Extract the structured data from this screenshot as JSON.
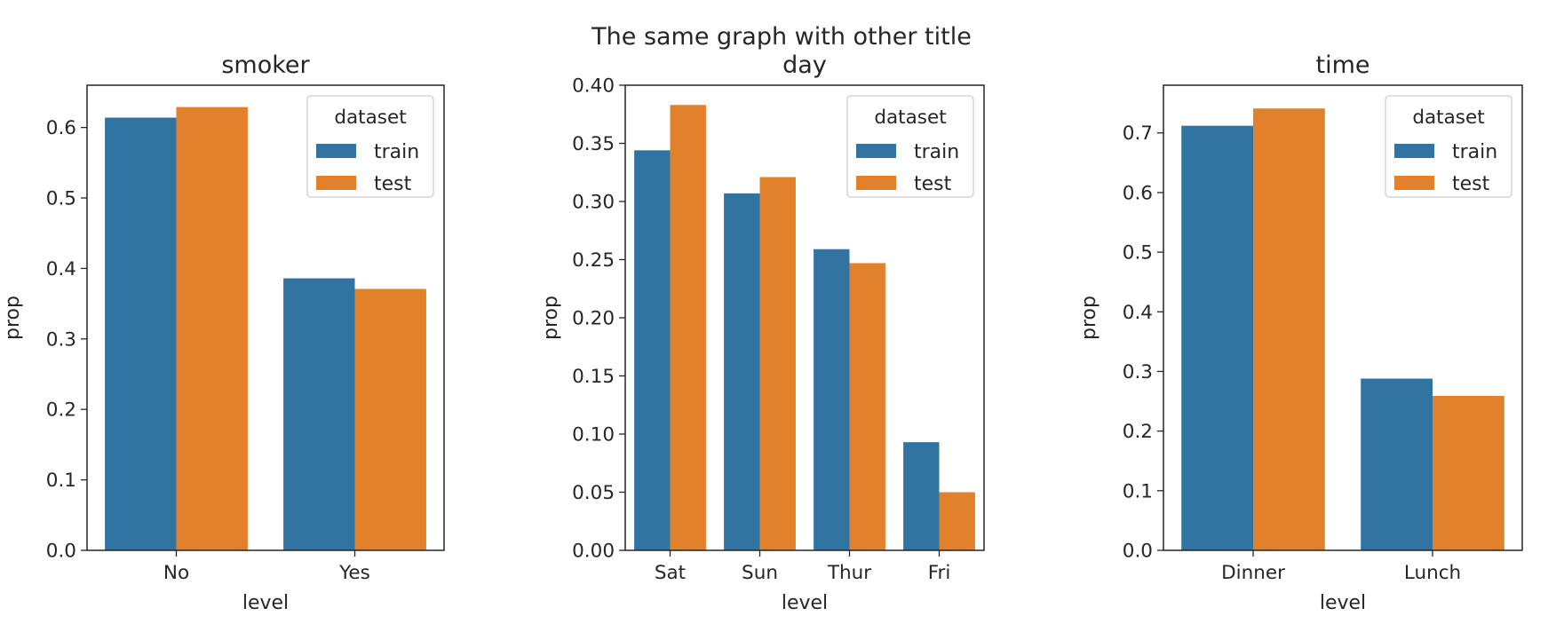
{
  "suptitle": "The same graph with other title",
  "colors": {
    "train": "#3274a1",
    "test": "#e1812c"
  },
  "chart_data": [
    {
      "type": "bar",
      "title": "smoker",
      "xlabel": "level",
      "ylabel": "prop",
      "categories": [
        "No",
        "Yes"
      ],
      "series": [
        {
          "name": "train",
          "values": [
            0.614,
            0.386
          ]
        },
        {
          "name": "test",
          "values": [
            0.629,
            0.371
          ]
        }
      ],
      "ylim": [
        0,
        0.66
      ],
      "yticks": [
        0.0,
        0.1,
        0.2,
        0.3,
        0.4,
        0.5,
        0.6
      ],
      "ytick_labels": [
        "0.0",
        "0.1",
        "0.2",
        "0.3",
        "0.4",
        "0.5",
        "0.6"
      ],
      "legend": {
        "title": "dataset",
        "position": "upper-right",
        "entries": [
          "train",
          "test"
        ]
      }
    },
    {
      "type": "bar",
      "title": "day",
      "xlabel": "level",
      "ylabel": "prop",
      "categories": [
        "Sat",
        "Sun",
        "Thur",
        "Fri"
      ],
      "series": [
        {
          "name": "train",
          "values": [
            0.344,
            0.307,
            0.259,
            0.093
          ]
        },
        {
          "name": "test",
          "values": [
            0.383,
            0.321,
            0.247,
            0.05
          ]
        }
      ],
      "ylim": [
        0,
        0.4
      ],
      "yticks": [
        0.0,
        0.05,
        0.1,
        0.15,
        0.2,
        0.25,
        0.3,
        0.35,
        0.4
      ],
      "ytick_labels": [
        "0.00",
        "0.05",
        "0.10",
        "0.15",
        "0.20",
        "0.25",
        "0.30",
        "0.35",
        "0.40"
      ],
      "legend": {
        "title": "dataset",
        "position": "upper-right",
        "entries": [
          "train",
          "test"
        ]
      }
    },
    {
      "type": "bar",
      "title": "time",
      "xlabel": "level",
      "ylabel": "prop",
      "categories": [
        "Dinner",
        "Lunch"
      ],
      "series": [
        {
          "name": "train",
          "values": [
            0.712,
            0.288
          ]
        },
        {
          "name": "test",
          "values": [
            0.741,
            0.259
          ]
        }
      ],
      "ylim": [
        0,
        0.78
      ],
      "yticks": [
        0.0,
        0.1,
        0.2,
        0.3,
        0.4,
        0.5,
        0.6,
        0.7
      ],
      "ytick_labels": [
        "0.0",
        "0.1",
        "0.2",
        "0.3",
        "0.4",
        "0.5",
        "0.6",
        "0.7"
      ],
      "legend": {
        "title": "dataset",
        "position": "upper-right",
        "entries": [
          "train",
          "test"
        ]
      }
    }
  ]
}
